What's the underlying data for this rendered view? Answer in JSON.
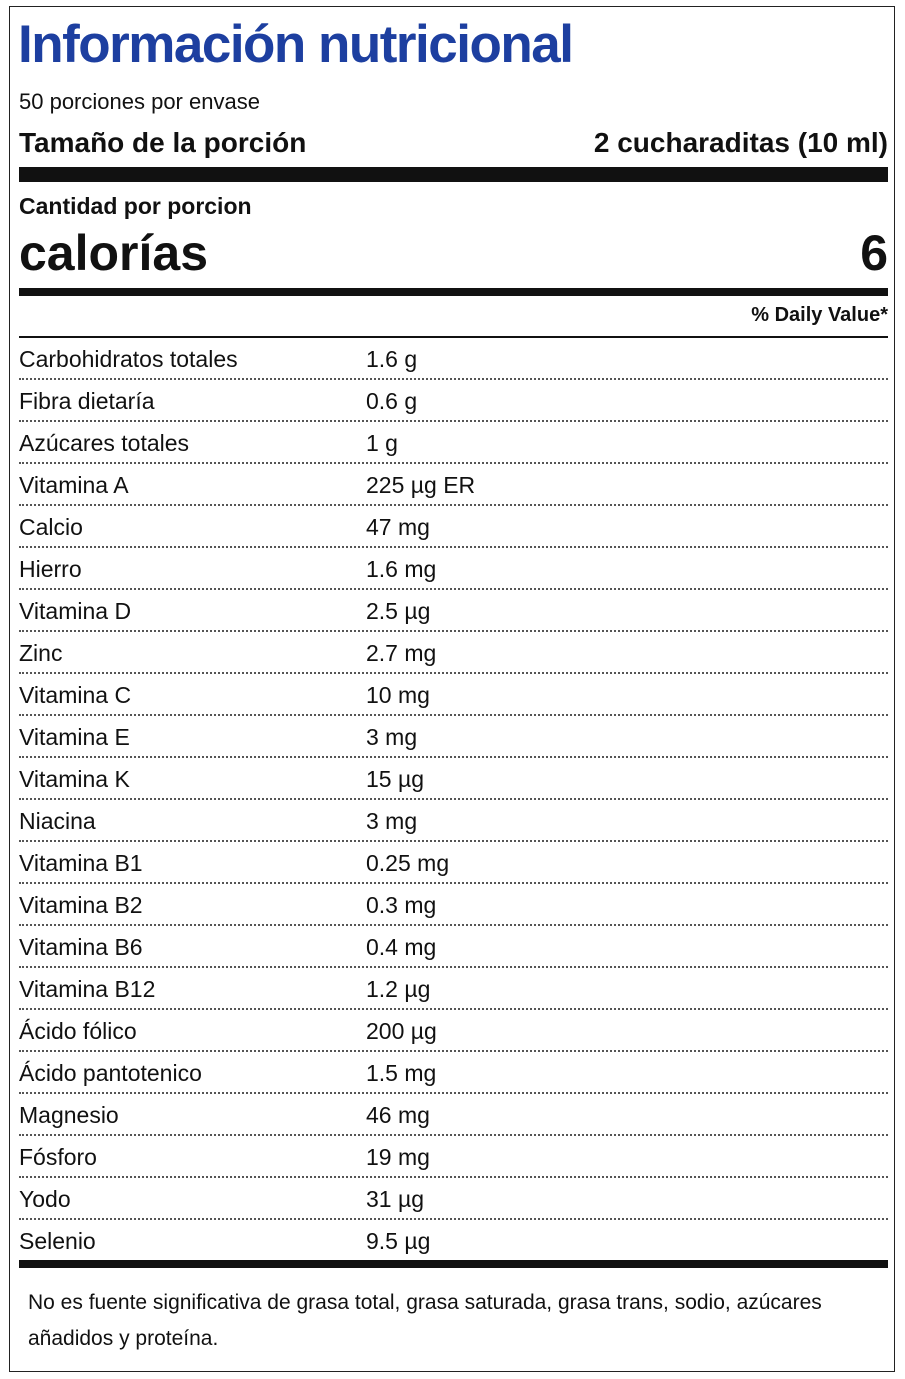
{
  "title": "Información nutricional",
  "servings": "50 porciones por envase",
  "serving_size": {
    "label": "Tamaño de la porción",
    "value": "2 cucharaditas (10 ml)"
  },
  "amount_per_serving": "Cantidad por porcion",
  "calories": {
    "label": "calorías",
    "value": "6"
  },
  "daily_value_header": "% Daily Value*",
  "rows": [
    [
      "Carbohidratos totales",
      "1.6 g"
    ],
    [
      "Fibra dietaría",
      "0.6 g"
    ],
    [
      "Azúcares totales",
      "1 g"
    ],
    [
      "Vitamina A",
      "225 µg ER"
    ],
    [
      "Calcio",
      "47 mg"
    ],
    [
      "Hierro",
      "1.6 mg"
    ],
    [
      "Vitamina D",
      "2.5 µg"
    ],
    [
      "Zinc",
      "2.7 mg"
    ],
    [
      "Vitamina C",
      "10 mg"
    ],
    [
      "Vitamina E",
      "3 mg"
    ],
    [
      "Vitamina K",
      "15 µg"
    ],
    [
      "Niacina",
      "3 mg"
    ],
    [
      "Vitamina B1",
      "0.25 mg"
    ],
    [
      "Vitamina B2",
      "0.3 mg"
    ],
    [
      "Vitamina B6",
      "0.4 mg"
    ],
    [
      "Vitamina B12",
      "1.2 µg"
    ],
    [
      "Ácido fólico",
      "200 µg"
    ],
    [
      "Ácido pantotenico",
      "1.5 mg"
    ],
    [
      "Magnesio",
      "46 mg"
    ],
    [
      "Fósforo",
      "19 mg"
    ],
    [
      "Yodo",
      "31 µg"
    ],
    [
      "Selenio",
      "9.5 µg"
    ]
  ],
  "footnote": "No es fuente significativa de grasa total, grasa saturada, grasa trans, sodio, azúcares añadidos y proteína."
}
